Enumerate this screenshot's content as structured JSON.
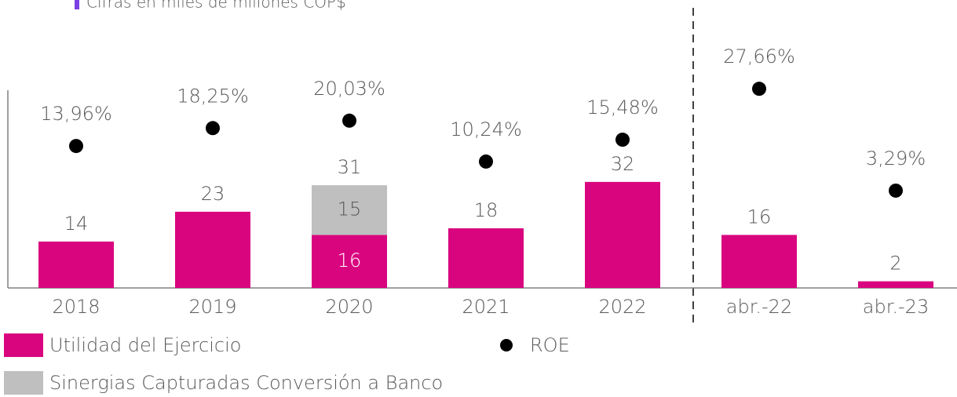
{
  "chart_data": {
    "type": "bar",
    "subtitle": "Cifras en miles de millones COP$",
    "categories": [
      "2018",
      "2019",
      "2020",
      "2021",
      "2022",
      "abr.-22",
      "abr.-23"
    ],
    "stacked": true,
    "ylim": [
      0,
      85
    ],
    "y2lim": [
      -20,
      47.4
    ],
    "series": [
      {
        "name": "Utilidad del Ejercicio",
        "color": "#d9057f",
        "values": [
          14,
          23,
          16,
          18,
          32,
          16,
          2
        ]
      },
      {
        "name": "Sinergias Capturadas Conversión a Banco",
        "color": "#bfbfbf",
        "values": [
          null,
          null,
          15,
          null,
          null,
          null,
          null
        ]
      },
      {
        "name": "ROE",
        "type": "scatter",
        "axis": "y2",
        "color": "#000000",
        "values": [
          13.96,
          18.25,
          20.03,
          10.24,
          15.48,
          27.66,
          3.29
        ],
        "value_labels": [
          "13,96%",
          "18,25%",
          "20,03%",
          "10,24%",
          "15,48%",
          "27,66%",
          "3,29%"
        ]
      }
    ],
    "annotations": [
      {
        "label": "31",
        "category": "2020"
      }
    ]
  }
}
